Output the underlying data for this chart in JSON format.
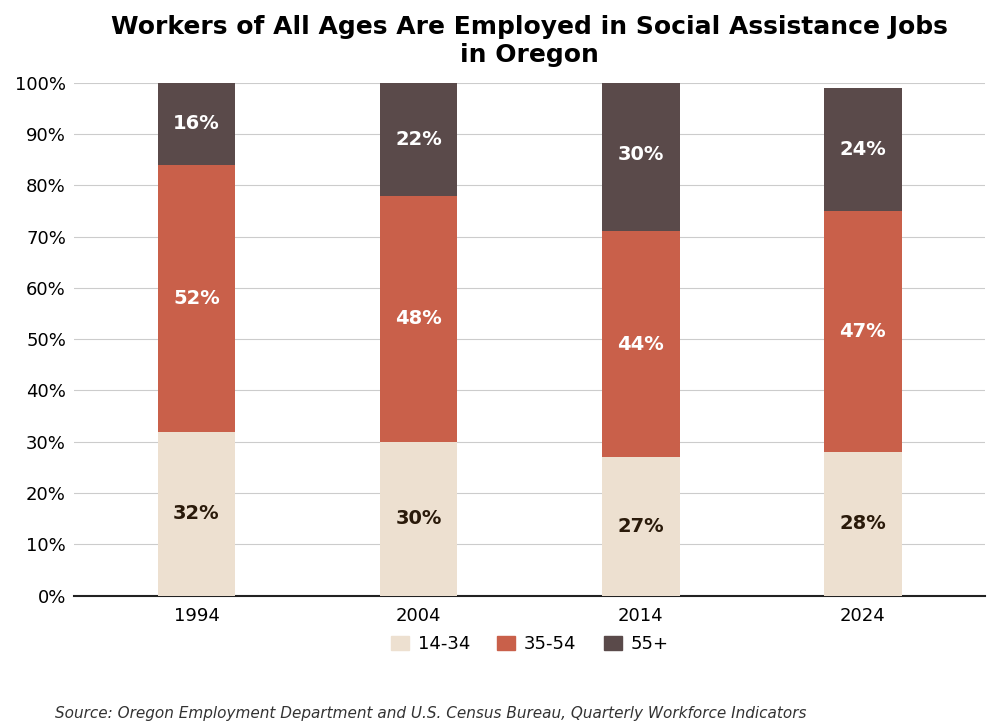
{
  "title": "Workers of All Ages Are Employed in Social Assistance Jobs\nin Oregon",
  "years": [
    "1994",
    "2004",
    "2014",
    "2024"
  ],
  "segments": {
    "14-34": [
      32,
      30,
      27,
      28
    ],
    "35-54": [
      52,
      48,
      44,
      47
    ],
    "55+": [
      16,
      22,
      30,
      24
    ]
  },
  "colors": {
    "14-34": "#ede0d0",
    "35-54": "#c9604a",
    "55+": "#5a4a4a"
  },
  "label_colors": {
    "14-34": "#2a1a0a",
    "35-54": "#ffffff",
    "55+": "#ffffff"
  },
  "bar_width": 0.35,
  "ylim": [
    0,
    100
  ],
  "yticks": [
    0,
    10,
    20,
    30,
    40,
    50,
    60,
    70,
    80,
    90,
    100
  ],
  "ytick_labels": [
    "0%",
    "10%",
    "20%",
    "30%",
    "40%",
    "50%",
    "60%",
    "70%",
    "80%",
    "90%",
    "100%"
  ],
  "source_text": "Source: Oregon Employment Department and U.S. Census Bureau, Quarterly Workforce Indicators",
  "title_fontsize": 18,
  "tick_fontsize": 13,
  "label_fontsize": 14,
  "legend_fontsize": 13,
  "source_fontsize": 11,
  "background_color": "#ffffff",
  "grid_color": "#cccccc"
}
